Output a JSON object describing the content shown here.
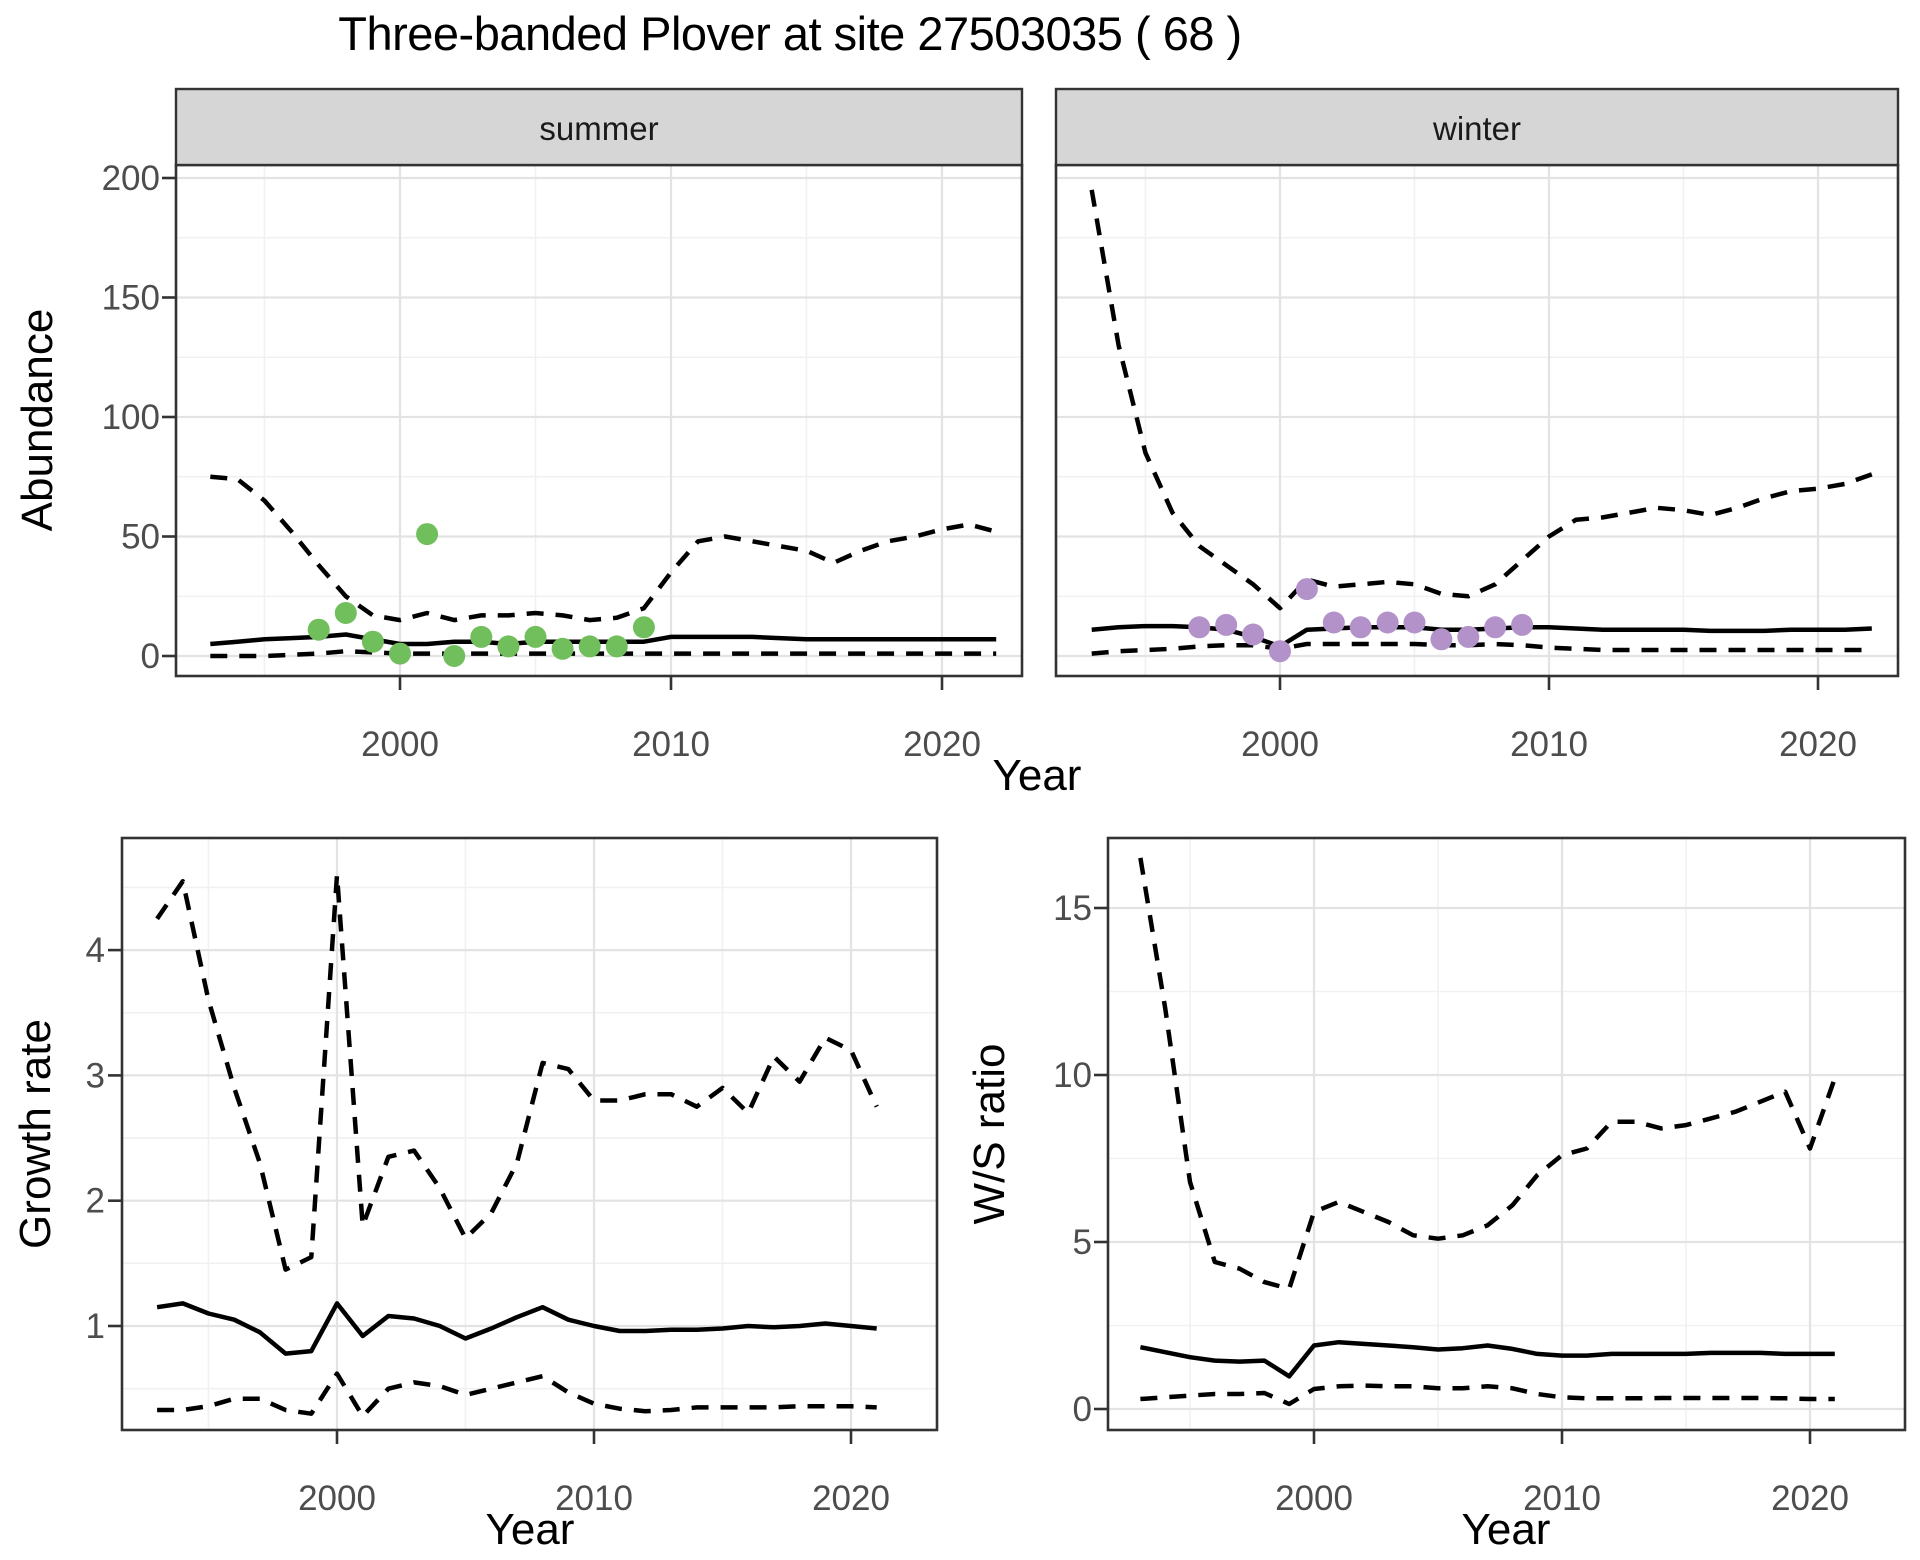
{
  "title": "Three-banded Plover at site 27503035 ( 68 )",
  "colors": {
    "summer_points": "#70bf5c",
    "winter_points": "#b292c9",
    "line": "#000000",
    "panel_border": "#333333",
    "strip_fill": "#d6d6d6",
    "grid_major": "#e3e3e3",
    "grid_minor": "#f1f1f1",
    "tick_text": "#4d4d4d"
  },
  "chart_data": [
    {
      "id": "abundance-summer",
      "type": "line",
      "facet": "summer",
      "xlabel": "Year",
      "ylabel": "Abundance",
      "xticks": [
        2000,
        2010,
        2020
      ],
      "yticks": [
        0,
        50,
        100,
        150,
        200
      ],
      "xlim": [
        1991.6,
        2023.4
      ],
      "ylim": [
        -8,
        205
      ],
      "grid": "on",
      "legend_position": "none",
      "x": [
        1993,
        1994,
        1995,
        1996,
        1997,
        1998,
        1999,
        2000,
        2001,
        2002,
        2003,
        2004,
        2005,
        2006,
        2007,
        2008,
        2009,
        2010,
        2011,
        2012,
        2013,
        2014,
        2015,
        2016,
        2017,
        2018,
        2019,
        2020,
        2021,
        2022
      ],
      "series": [
        {
          "name": "median",
          "style": "solid",
          "values": [
            5,
            6,
            7,
            7.5,
            8,
            9,
            7,
            5,
            5,
            6,
            6,
            5,
            6,
            6,
            6,
            6,
            6,
            8,
            8,
            8,
            8,
            7.5,
            7,
            7,
            7,
            7,
            7,
            7,
            7,
            7
          ]
        },
        {
          "name": "lower_ci",
          "style": "dashed",
          "values": [
            0,
            0,
            0,
            0.5,
            1,
            2,
            1.5,
            1,
            1,
            1,
            1,
            1,
            1,
            1,
            1,
            1,
            1,
            1,
            1,
            1,
            1,
            1,
            1,
            1,
            1,
            1,
            1,
            1,
            1,
            1
          ]
        },
        {
          "name": "upper_ci",
          "style": "dashed",
          "values": [
            75,
            74,
            65,
            52,
            38,
            25,
            17,
            15,
            18,
            15,
            17,
            17,
            18,
            17,
            15,
            16,
            20,
            35,
            48,
            50,
            48,
            46,
            44,
            39,
            44,
            48,
            50,
            53,
            55,
            52
          ]
        }
      ],
      "points": {
        "name": "observed",
        "color": "#70bf5c",
        "x": [
          1997,
          1998,
          1999,
          2000,
          2001,
          2002,
          2003,
          2004,
          2005,
          2006,
          2007,
          2008,
          2009
        ],
        "y": [
          11,
          18,
          6,
          1,
          51,
          0,
          8,
          4,
          8,
          3,
          4,
          4,
          12
        ]
      }
    },
    {
      "id": "abundance-winter",
      "type": "line",
      "facet": "winter",
      "xlabel": "Year",
      "ylabel": "Abundance",
      "xticks": [
        2000,
        2010,
        2020
      ],
      "yticks": [
        0,
        50,
        100,
        150,
        200
      ],
      "xlim": [
        1991.6,
        2023.4
      ],
      "ylim": [
        -8,
        205
      ],
      "grid": "on",
      "legend_position": "none",
      "x": [
        1993,
        1994,
        1995,
        1996,
        1997,
        1998,
        1999,
        2000,
        2001,
        2002,
        2003,
        2004,
        2005,
        2006,
        2007,
        2008,
        2009,
        2010,
        2011,
        2012,
        2013,
        2014,
        2015,
        2016,
        2017,
        2018,
        2019,
        2020,
        2021,
        2022
      ],
      "series": [
        {
          "name": "median",
          "style": "solid",
          "values": [
            11,
            12,
            12.5,
            12.5,
            12,
            11,
            8,
            4,
            11,
            11.5,
            12,
            12,
            12,
            11,
            11,
            11.5,
            12,
            12,
            11.5,
            11,
            11,
            11,
            11,
            10.5,
            10.5,
            10.5,
            11,
            11,
            11,
            11.5
          ]
        },
        {
          "name": "lower_ci",
          "style": "dashed",
          "values": [
            1,
            2,
            2.5,
            3,
            4,
            4.5,
            4.5,
            3,
            5,
            5,
            5,
            5,
            5,
            4.5,
            4.5,
            5,
            4.5,
            3.5,
            3,
            2.5,
            2.5,
            2.5,
            2.5,
            2.5,
            2.5,
            2.5,
            2.5,
            2.5,
            2.5,
            2.5
          ]
        },
        {
          "name": "upper_ci",
          "style": "dashed",
          "values": [
            195,
            130,
            85,
            60,
            46,
            38,
            30,
            20,
            32,
            29,
            30,
            31,
            30,
            26,
            25,
            30,
            40,
            50,
            57,
            58,
            60,
            62,
            61,
            59,
            62,
            66,
            69,
            70,
            72,
            76
          ]
        }
      ],
      "points": {
        "name": "observed",
        "color": "#b292c9",
        "x": [
          1997,
          1998,
          1999,
          2000,
          2001,
          2002,
          2003,
          2004,
          2005,
          2006,
          2007,
          2008,
          2009
        ],
        "y": [
          12,
          13,
          9,
          2,
          28,
          14,
          12,
          14,
          14,
          7,
          8,
          12,
          13
        ]
      }
    },
    {
      "id": "growth-rate",
      "type": "line",
      "facet": "",
      "xlabel": "Year",
      "ylabel": "Growth rate",
      "xticks": [
        2000,
        2010,
        2020
      ],
      "yticks": [
        1,
        2,
        3,
        4
      ],
      "xlim": [
        1991.6,
        2022.4
      ],
      "ylim": [
        0.17,
        4.89
      ],
      "grid": "on",
      "legend_position": "none",
      "x": [
        1993,
        1994,
        1995,
        1996,
        1997,
        1998,
        1999,
        2000,
        2001,
        2002,
        2003,
        2004,
        2005,
        2006,
        2007,
        2008,
        2009,
        2010,
        2011,
        2012,
        2013,
        2014,
        2015,
        2016,
        2017,
        2018,
        2019,
        2020,
        2021
      ],
      "series": [
        {
          "name": "median",
          "style": "solid",
          "values": [
            1.15,
            1.18,
            1.1,
            1.05,
            0.95,
            0.78,
            0.8,
            1.18,
            0.92,
            1.08,
            1.06,
            1.0,
            0.9,
            0.98,
            1.07,
            1.15,
            1.05,
            1.0,
            0.96,
            0.96,
            0.97,
            0.97,
            0.98,
            1.0,
            0.99,
            1.0,
            1.02,
            1.0,
            0.98
          ]
        },
        {
          "name": "lower_ci",
          "style": "dashed",
          "values": [
            0.33,
            0.33,
            0.36,
            0.42,
            0.42,
            0.33,
            0.3,
            0.62,
            0.28,
            0.5,
            0.55,
            0.52,
            0.45,
            0.5,
            0.55,
            0.6,
            0.47,
            0.38,
            0.34,
            0.32,
            0.33,
            0.35,
            0.35,
            0.35,
            0.35,
            0.36,
            0.36,
            0.36,
            0.35
          ]
        },
        {
          "name": "upper_ci",
          "style": "dashed",
          "values": [
            4.25,
            4.55,
            3.6,
            2.9,
            2.3,
            1.45,
            1.55,
            4.6,
            1.8,
            2.35,
            2.4,
            2.1,
            1.7,
            1.9,
            2.3,
            3.1,
            3.05,
            2.8,
            2.8,
            2.85,
            2.85,
            2.75,
            2.9,
            2.7,
            3.15,
            2.95,
            3.3,
            3.2,
            2.75
          ]
        }
      ],
      "points": null
    },
    {
      "id": "ws-ratio",
      "type": "line",
      "facet": "",
      "xlabel": "Year",
      "ylabel": "W/S ratio",
      "xticks": [
        2000,
        2010,
        2020
      ],
      "yticks": [
        0,
        5,
        10,
        15
      ],
      "xlim": [
        1991.6,
        2022.4
      ],
      "ylim": [
        -0.63,
        17.1
      ],
      "grid": "on",
      "legend_position": "none",
      "x": [
        1993,
        1994,
        1995,
        1996,
        1997,
        1998,
        1999,
        2000,
        2001,
        2002,
        2003,
        2004,
        2005,
        2006,
        2007,
        2008,
        2009,
        2010,
        2011,
        2012,
        2013,
        2014,
        2015,
        2016,
        2017,
        2018,
        2019,
        2020,
        2021
      ],
      "series": [
        {
          "name": "median",
          "style": "solid",
          "values": [
            1.85,
            1.7,
            1.55,
            1.45,
            1.42,
            1.45,
            0.98,
            1.9,
            2.0,
            1.95,
            1.9,
            1.85,
            1.78,
            1.82,
            1.9,
            1.8,
            1.65,
            1.6,
            1.6,
            1.65,
            1.65,
            1.65,
            1.65,
            1.68,
            1.68,
            1.68,
            1.65,
            1.65,
            1.65
          ]
        },
        {
          "name": "lower_ci",
          "style": "dashed",
          "values": [
            0.3,
            0.35,
            0.4,
            0.45,
            0.45,
            0.48,
            0.15,
            0.6,
            0.68,
            0.7,
            0.68,
            0.68,
            0.62,
            0.62,
            0.68,
            0.62,
            0.45,
            0.35,
            0.32,
            0.32,
            0.32,
            0.33,
            0.33,
            0.33,
            0.33,
            0.33,
            0.32,
            0.3,
            0.3
          ]
        },
        {
          "name": "upper_ci",
          "style": "dashed",
          "values": [
            16.5,
            12,
            6.8,
            4.4,
            4.2,
            3.8,
            3.6,
            5.9,
            6.2,
            5.9,
            5.6,
            5.2,
            5.1,
            5.2,
            5.5,
            6.1,
            7.0,
            7.6,
            7.8,
            8.6,
            8.6,
            8.4,
            8.5,
            8.7,
            8.9,
            9.2,
            9.5,
            7.8,
            9.9
          ]
        }
      ],
      "points": null
    }
  ]
}
